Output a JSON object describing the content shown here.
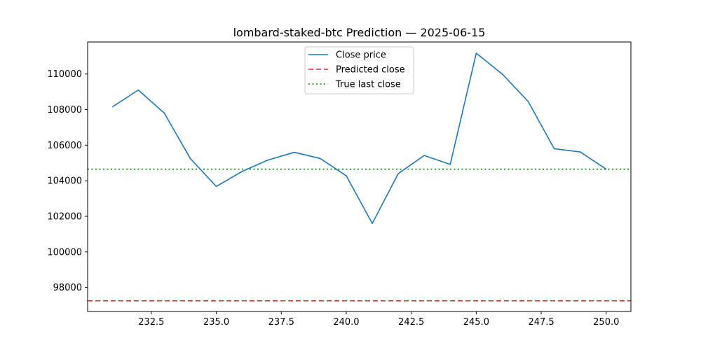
{
  "chart_data": {
    "type": "line",
    "title": "lombard-staked-btc Prediction — 2025-06-15",
    "xlabel": "",
    "ylabel": "",
    "xlim": [
      230.05,
      250.95
    ],
    "ylim": [
      96650,
      111800
    ],
    "xticks": [
      232.5,
      235.0,
      237.5,
      240.0,
      242.5,
      245.0,
      247.5,
      250.0
    ],
    "xtick_labels": [
      "232.5",
      "235.0",
      "237.5",
      "240.0",
      "242.5",
      "245.0",
      "247.5",
      "250.0"
    ],
    "yticks": [
      98000,
      100000,
      102000,
      104000,
      106000,
      108000,
      110000
    ],
    "ytick_labels": [
      "98000",
      "100000",
      "102000",
      "104000",
      "106000",
      "108000",
      "110000"
    ],
    "grid": false,
    "legend_position": "top-center",
    "series": [
      {
        "name": "Close price",
        "color": "#1f77b4",
        "style": "solid",
        "x": [
          231,
          232,
          233,
          234,
          235,
          236,
          237,
          238,
          239,
          240,
          241,
          242,
          243,
          244,
          245,
          246,
          247,
          248,
          249,
          250
        ],
        "y": [
          108150,
          109100,
          107800,
          105250,
          103680,
          104530,
          105170,
          105600,
          105250,
          104280,
          101600,
          104400,
          105420,
          104920,
          111170,
          110000,
          108450,
          105800,
          105620,
          104650
        ]
      }
    ],
    "hlines": [
      {
        "name": "Predicted close",
        "color": "#d62728",
        "style": "dashed",
        "y": 97250
      },
      {
        "name": "True last close",
        "color": "#008000",
        "style": "dotted",
        "y": 104650
      }
    ],
    "legend": [
      {
        "label": "Close price",
        "color": "#1f77b4",
        "style": "solid"
      },
      {
        "label": "Predicted close",
        "color": "#d62728",
        "style": "dashed"
      },
      {
        "label": "True last close",
        "color": "#008000",
        "style": "dotted"
      }
    ]
  }
}
